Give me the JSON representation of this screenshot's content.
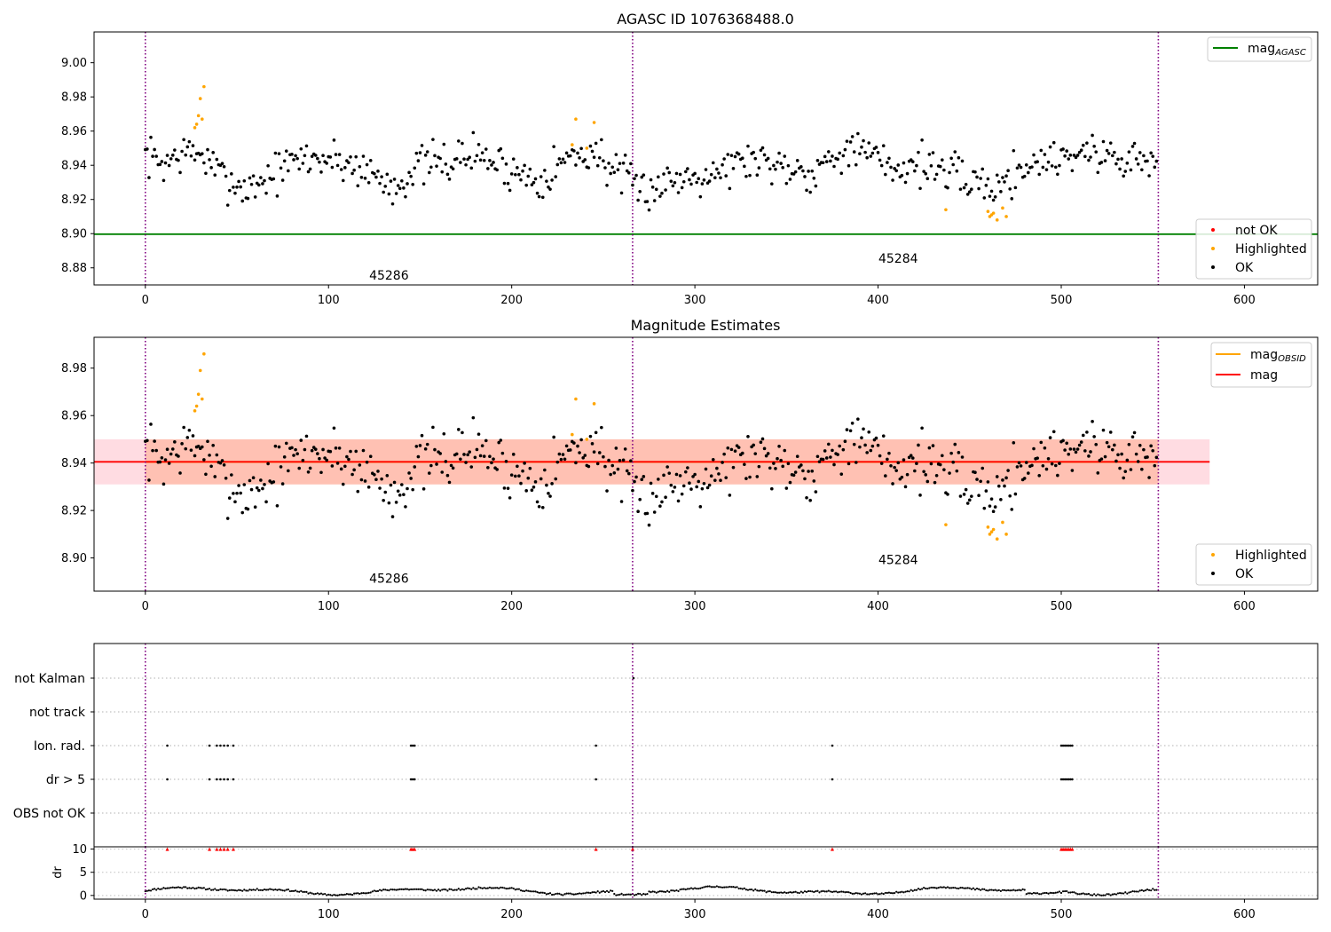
{
  "chart_data": [
    {
      "panel": "top",
      "type": "scatter",
      "title": "AGASC ID 1076368488.0",
      "xlim": [
        -28,
        640
      ],
      "ylim": [
        8.87,
        9.018
      ],
      "x_ticks": [
        0,
        100,
        200,
        300,
        400,
        500,
        600
      ],
      "y_ticks": [
        {
          "value": 8.88,
          "label": "8.88"
        },
        {
          "value": 8.9,
          "label": "8.90"
        },
        {
          "value": 8.92,
          "label": "8.92"
        },
        {
          "value": 8.94,
          "label": "8.94"
        },
        {
          "value": 8.96,
          "label": "8.96"
        },
        {
          "value": 8.98,
          "label": "8.98"
        },
        {
          "value": 9.0,
          "label": "9.00"
        }
      ],
      "obsid_boundaries": [
        0,
        266,
        553
      ],
      "obsid_labels": [
        {
          "text": "45286",
          "x": 133,
          "y": 8.873
        },
        {
          "text": "45284",
          "x": 411,
          "y": 8.883
        }
      ],
      "mag_agasc": 8.8997,
      "legend_line": {
        "base": "mag",
        "sub": "AGASC"
      },
      "legend_points": [
        "not OK",
        "Highlighted",
        "OK"
      ],
      "highlighted_points": [
        [
          27,
          8.962
        ],
        [
          28,
          8.964
        ],
        [
          29,
          8.969
        ],
        [
          30,
          8.979
        ],
        [
          31,
          8.967
        ],
        [
          32,
          8.986
        ],
        [
          233,
          8.952
        ],
        [
          235,
          8.967
        ],
        [
          241,
          8.95
        ],
        [
          245,
          8.965
        ],
        [
          437,
          8.914
        ],
        [
          460,
          8.913
        ],
        [
          461,
          8.91
        ],
        [
          462,
          8.911
        ],
        [
          463,
          8.912
        ],
        [
          465,
          8.908
        ],
        [
          468,
          8.915
        ],
        [
          470,
          8.91
        ]
      ],
      "ok_series": {
        "n": 553,
        "seed": 7
      }
    },
    {
      "panel": "middle",
      "type": "scatter",
      "title": "Magnitude Estimates",
      "xlim": [
        -28,
        640
      ],
      "ylim": [
        8.886,
        8.993
      ],
      "x_ticks": [
        0,
        100,
        200,
        300,
        400,
        500,
        600
      ],
      "y_ticks": [
        {
          "value": 8.9,
          "label": "8.90"
        },
        {
          "value": 8.92,
          "label": "8.92"
        },
        {
          "value": 8.94,
          "label": "8.94"
        },
        {
          "value": 8.96,
          "label": "8.96"
        },
        {
          "value": 8.98,
          "label": "8.98"
        }
      ],
      "obsid_boundaries": [
        0,
        266,
        553
      ],
      "obsid_labels": [
        {
          "text": "45286",
          "x": 133,
          "y": 8.8895
        },
        {
          "text": "45284",
          "x": 411,
          "y": 8.8975
        }
      ],
      "mag": 8.9405,
      "mag_band": [
        8.931,
        8.95
      ],
      "mag_band_x": [
        -28,
        581
      ],
      "mag_obsid_segments": [
        {
          "x": [
            0,
            266
          ],
          "mag": 8.9405,
          "band": [
            8.931,
            8.95
          ]
        },
        {
          "x": [
            266,
            553
          ],
          "mag": 8.9405,
          "band": [
            8.931,
            8.95
          ]
        }
      ],
      "legend_lines": [
        {
          "base": "mag",
          "sub": "OBSID",
          "color": "#ffa500"
        },
        {
          "base": "mag",
          "sub": "",
          "color": "#ff0000"
        }
      ],
      "legend_points": [
        "Highlighted",
        "OK"
      ]
    },
    {
      "panel": "flags",
      "type": "scatter",
      "xlim": [
        -28,
        640
      ],
      "flag_rows": [
        "not Kalman",
        "not track",
        "Ion. rad.",
        "dr > 5",
        "OBS not OK"
      ],
      "obsid_boundaries": [
        0,
        266,
        553
      ],
      "flag_points": {
        "not Kalman": [
          266.5
        ],
        "not track": [],
        "Ion. rad.": [
          12,
          35,
          39,
          41,
          43,
          45,
          48,
          145,
          146,
          147,
          246,
          375,
          500,
          501,
          502,
          503,
          504,
          505,
          506
        ],
        "dr > 5": [
          12,
          35,
          39,
          41,
          43,
          45,
          48,
          145,
          146,
          147,
          246,
          375,
          500,
          501,
          502,
          503,
          504,
          505,
          506
        ],
        "OBS not OK": []
      }
    },
    {
      "panel": "dr",
      "type": "scatter",
      "xlim": [
        -28,
        640
      ],
      "ylim": [
        -0.8,
        10.5
      ],
      "ylabel": "dr",
      "y_ticks": [
        {
          "value": 0,
          "label": "0"
        },
        {
          "value": 5,
          "label": "5"
        },
        {
          "value": 10,
          "label": "10"
        }
      ],
      "x_ticks": [
        0,
        100,
        200,
        300,
        400,
        500,
        600
      ],
      "obsid_boundaries": [
        0,
        266,
        553
      ],
      "clipped_markers_at_10": [
        12,
        35,
        39,
        41,
        43,
        45,
        48,
        145,
        146,
        147,
        246,
        266,
        375,
        500,
        501,
        502,
        503,
        504,
        505,
        506
      ]
    }
  ],
  "colors": {
    "ok": "#000000",
    "highlighted": "#ffa500",
    "not_ok": "#ff0000",
    "mag_agasc": "#008000",
    "mag": "#ff0000",
    "mag_obsid": "#ffa500",
    "obsid_boundary": "#800080",
    "band_mag": "#ffc0cb",
    "band_obsid": "#ffa07a",
    "flag_marker": "#000000",
    "dr_clipped": "#ff0000"
  }
}
